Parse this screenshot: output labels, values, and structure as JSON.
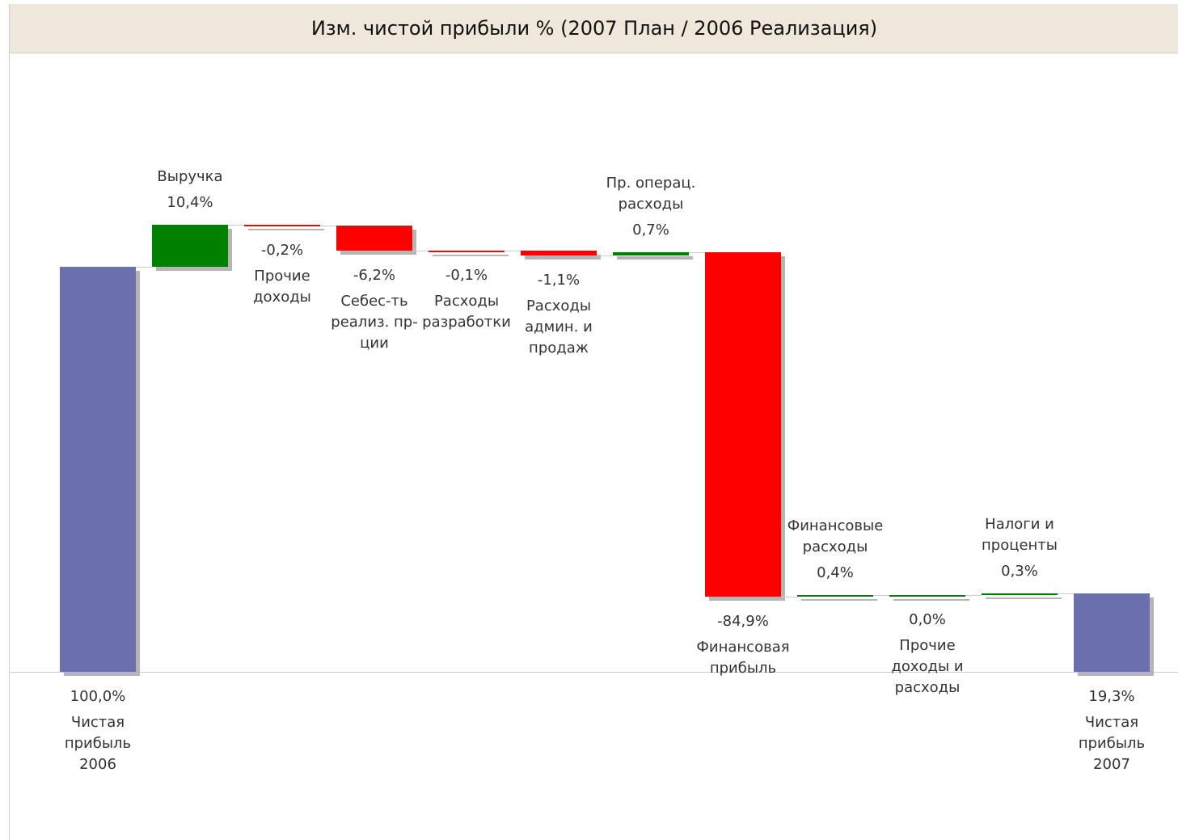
{
  "chart_data": {
    "type": "waterfall",
    "title": "Изм. чистой прибыли % (2007 План / 2006 Реализация)",
    "categories": [
      "Чистая прибыль 2006",
      "Выручка",
      "Прочие доходы",
      "Себес-ть реализ. пр-ции",
      "Расходы разработки",
      "Расходы админ. и продаж",
      "Пр. операц. расходы",
      "Финансовая прибыль",
      "Финансовые расходы",
      "Прочие доходы и расходы",
      "Налоги и проценты",
      "Чистая прибыль 2007"
    ],
    "values": [
      100,
      10.4,
      -0.2,
      -6.2,
      -0.1,
      -1.1,
      0.7,
      -84.9,
      0.4,
      0.0,
      0.3,
      19.3
    ],
    "value_labels": [
      "100,0%",
      "10,4%",
      "-0,2%",
      "-6,2%",
      "-0,1%",
      "-1,1%",
      "0,7%",
      "-84,9%",
      "0,4%",
      "0,0%",
      "0,3%",
      "19,3%"
    ],
    "is_total": [
      true,
      false,
      false,
      false,
      false,
      false,
      false,
      false,
      false,
      false,
      false,
      true
    ],
    "colors": {
      "total": "#6a6fae",
      "increase": "#008000",
      "decrease": "#ff0000"
    }
  }
}
